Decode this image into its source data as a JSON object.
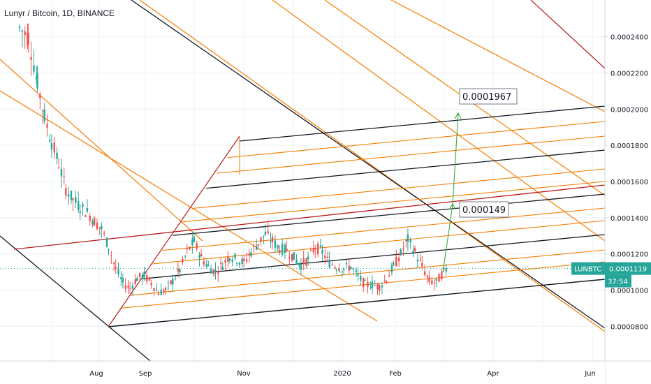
{
  "header": {
    "title": "Lunyr / Bitcoin, 1D, BINANCE"
  },
  "colors": {
    "up": "#26a69a",
    "down": "#ef5350",
    "channel_black": "#131722",
    "channel_orange": "#f57c00",
    "channel_red": "#b71c1c",
    "projection": "#4caf50",
    "badge_bg": "#26a69a",
    "current_line": "#26a69a"
  },
  "chart_data": {
    "type": "candlestick",
    "title": "Lunyr / Bitcoin, 1D, BINANCE",
    "symbol": "LUNBTC",
    "ylim": [
      6.35e-05,
      0.0002565
    ],
    "y_ticks": [
      "0.0000800",
      "0.0001000",
      "0.0001200",
      "0.0001400",
      "0.0001600",
      "0.0001800",
      "0.0002000",
      "0.0002200",
      "0.0002400"
    ],
    "x_ticks": [
      "Aug",
      "Sep",
      "Nov",
      "2020",
      "Feb",
      "Apr",
      "Jun"
    ],
    "current_price": "0.0001119",
    "countdown": "37:54",
    "annotations": [
      {
        "text": "0.0001967",
        "price": 0.0001967
      },
      {
        "text": "0.000149",
        "price": 0.000149
      }
    ],
    "price_path": [
      [
        0,
        0.000245
      ],
      [
        5,
        0.00024
      ],
      [
        10,
        0.000215
      ],
      [
        14,
        0.000196
      ],
      [
        18,
        0.000182
      ],
      [
        22,
        0.00017
      ],
      [
        26,
        0.000156
      ],
      [
        30,
        0.00015
      ],
      [
        34,
        0.000146
      ],
      [
        38,
        0.000143
      ],
      [
        42,
        0.000138
      ],
      [
        46,
        0.000134
      ],
      [
        50,
        0.000124
      ],
      [
        54,
        0.000112
      ],
      [
        58,
        0.000104
      ],
      [
        62,
        0.000101
      ],
      [
        66,
        0.0001065
      ],
      [
        70,
        0.000108
      ],
      [
        74,
        0.000104
      ],
      [
        78,
        9.85e-05
      ],
      [
        82,
        0.0001
      ],
      [
        86,
        0.000105
      ],
      [
        90,
        0.000111
      ],
      [
        94,
        0.000121
      ],
      [
        98,
        0.000127
      ],
      [
        102,
        0.000118
      ],
      [
        106,
        0.000113
      ],
      [
        110,
        0.00011
      ],
      [
        114,
        0.000114
      ],
      [
        118,
        0.000119
      ],
      [
        122,
        0.000117
      ],
      [
        126,
        0.000115
      ],
      [
        130,
        0.000121
      ],
      [
        134,
        0.000126
      ],
      [
        138,
        0.000131
      ],
      [
        142,
        0.000127
      ],
      [
        146,
        0.000123
      ],
      [
        150,
        0.000122
      ],
      [
        154,
        0.000118
      ],
      [
        158,
        0.000114
      ],
      [
        162,
        0.000117
      ],
      [
        166,
        0.000124
      ],
      [
        170,
        0.000121
      ],
      [
        174,
        0.000115
      ],
      [
        178,
        0.000113
      ],
      [
        182,
        0.000112
      ],
      [
        186,
        0.000113
      ],
      [
        190,
        0.0001075
      ],
      [
        194,
        0.000103
      ],
      [
        198,
        0.000103
      ],
      [
        202,
        0.000102
      ],
      [
        206,
        0.000106
      ],
      [
        210,
        0.000113
      ],
      [
        214,
        0.00012
      ],
      [
        218,
        0.000128
      ],
      [
        222,
        0.000121
      ],
      [
        226,
        0.000113
      ],
      [
        230,
        0.000105
      ],
      [
        234,
        0.000104
      ],
      [
        238,
        0.00011
      ],
      [
        240,
        0.0001119
      ]
    ]
  }
}
